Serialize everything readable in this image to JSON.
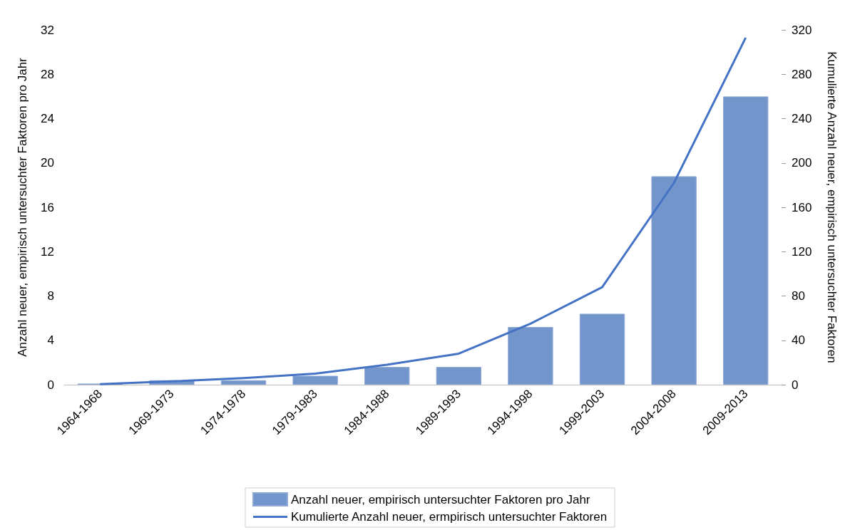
{
  "chart_data": {
    "type": "bar",
    "ylabel": "Anzahl neuer, empirisch untersuchter Faktoren pro Jahr",
    "y2label": "Kumulierte Anzahl neuer, empirisch untersuchter Faktoren",
    "categories": [
      "1964-1968",
      "1969-1973",
      "1974-1978",
      "1979-1983",
      "1984-1988",
      "1989-1993",
      "1994-1998",
      "1999-2003",
      "2004-2008",
      "2009-2013"
    ],
    "series": [
      {
        "name": "Anzahl neuer, empirisch untersuchter Faktoren pro Jahr",
        "color": "#7296cc",
        "values": [
          0.1,
          0.4,
          0.4,
          0.8,
          1.6,
          1.6,
          5.2,
          6.4,
          18.8,
          26
        ]
      },
      {
        "name": "Kumulierte Anzahl neuer, ermpirisch untersuchter Faktoren",
        "type": "line",
        "axis": "y2",
        "color": "#4472c4",
        "values": [
          0.5,
          3,
          6,
          10,
          18,
          28,
          55,
          88,
          182,
          313
        ]
      }
    ],
    "ylim": [
      0,
      32
    ],
    "yticks": [
      0,
      4,
      8,
      12,
      16,
      20,
      24,
      28,
      32
    ],
    "y2lim": [
      0,
      320
    ],
    "y2ticks": [
      0,
      40,
      80,
      120,
      160,
      200,
      240,
      280,
      320
    ],
    "grid": false,
    "legend": "bottom",
    "marker": "none",
    "line_style": "solid"
  }
}
